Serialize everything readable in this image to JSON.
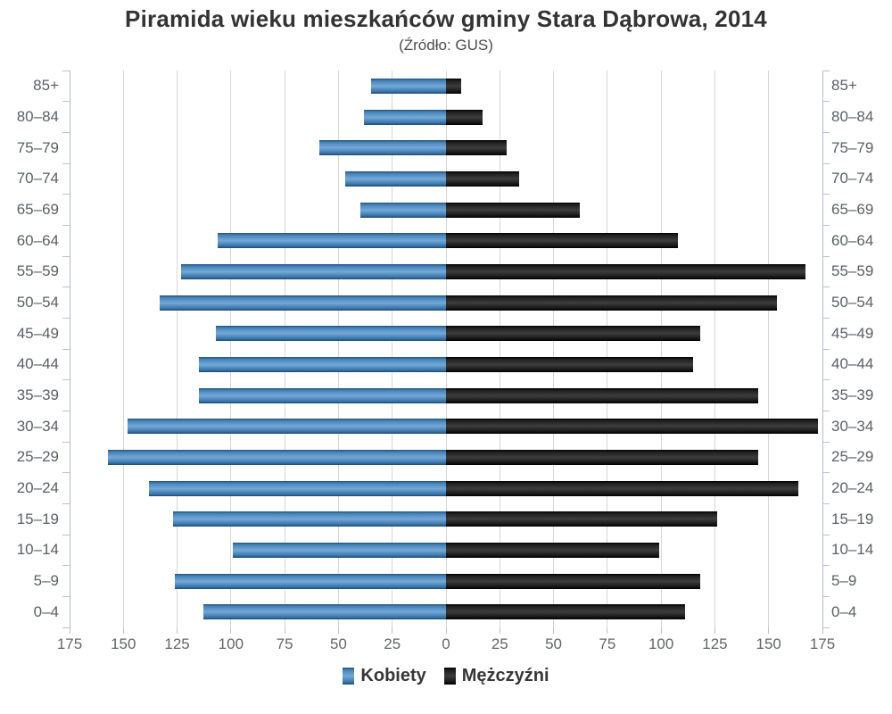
{
  "title": "Piramida wieku mieszkańców gminy Stara Dąbrowa, 2014",
  "subtitle": "(Źródło: GUS)",
  "legend": {
    "items": [
      {
        "label": "Kobiety",
        "series": "Kobiety"
      },
      {
        "label": "Mężczyźni",
        "series": "Mężczyźni"
      }
    ]
  },
  "colors": {
    "female_gradient": [
      "#20517c",
      "#4783b8",
      "#74a9d8",
      "#3a76aa",
      "#1d4a70"
    ],
    "male_gradient": [
      "#000000",
      "#1f1f1f",
      "#3d3d3d",
      "#161616",
      "#000000"
    ],
    "gridline": "#d6d6d6",
    "axisline": "#b2bcc8",
    "category_label": "#5a6066",
    "number_label": "#63666a",
    "title": "#333333"
  },
  "chart_data": {
    "type": "bar",
    "variant": "population-pyramid-horizontal",
    "title": "Piramida wieku mieszkańców gminy Stara Dąbrowa, 2014",
    "subtitle": "(Źródło: GUS)",
    "categories": [
      "85+",
      "80–84",
      "75–79",
      "70–74",
      "65–69",
      "60–64",
      "55–59",
      "50–54",
      "45–49",
      "40–44",
      "35–39",
      "30–34",
      "25–29",
      "20–24",
      "15–19",
      "10–14",
      "5–9",
      "0–4"
    ],
    "series": [
      {
        "name": "Kobiety",
        "side": "left",
        "values": [
          35,
          38,
          59,
          47,
          40,
          106,
          123,
          133,
          107,
          115,
          115,
          148,
          157,
          138,
          127,
          99,
          126,
          113
        ]
      },
      {
        "name": "Mężczyźni",
        "side": "right",
        "values": [
          7,
          17,
          28,
          34,
          62,
          108,
          167,
          154,
          118,
          115,
          145,
          173,
          145,
          164,
          126,
          99,
          118,
          111
        ]
      }
    ],
    "x_tick_values": [
      -175,
      -150,
      -125,
      -100,
      -75,
      -50,
      -25,
      0,
      25,
      50,
      75,
      100,
      125,
      150,
      175
    ],
    "x_tick_labels": [
      "175",
      "150",
      "125",
      "100",
      "75",
      "50",
      "25",
      "0",
      "25",
      "50",
      "75",
      "100",
      "125",
      "150",
      "175"
    ],
    "xlim": [
      -175,
      175
    ],
    "grid": "vertical-only",
    "axis_labels_both_sides": true,
    "legend_position": "bottom"
  }
}
